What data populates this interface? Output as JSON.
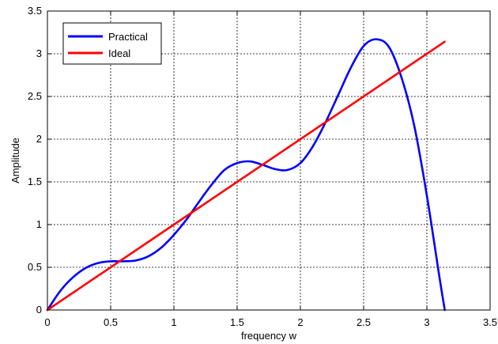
{
  "chart_data": {
    "type": "line",
    "xlabel": "frequency w",
    "ylabel": "Amplitude",
    "xlim": [
      0,
      3.5
    ],
    "ylim": [
      0,
      3.5
    ],
    "xticks": [
      0,
      0.5,
      1,
      1.5,
      2,
      2.5,
      3,
      3.5
    ],
    "yticks": [
      0,
      0.5,
      1,
      1.5,
      2,
      2.5,
      3,
      3.5
    ],
    "xtick_labels": [
      "0",
      "0.5",
      "1",
      "1.5",
      "2",
      "2.5",
      "3",
      "3.5"
    ],
    "ytick_labels": [
      "0",
      "0.5",
      "1",
      "1.5",
      "2",
      "2.5",
      "3",
      "3.5"
    ],
    "grid": true,
    "legend_position": "top-left",
    "series": [
      {
        "name": "Practical",
        "color": "#0000ff",
        "x": [
          0,
          0.1,
          0.2,
          0.3,
          0.4,
          0.5,
          0.6,
          0.7,
          0.8,
          0.9,
          1.0,
          1.1,
          1.2,
          1.3,
          1.4,
          1.5,
          1.6,
          1.7,
          1.8,
          1.9,
          2.0,
          2.1,
          2.2,
          2.3,
          2.4,
          2.5,
          2.6,
          2.7,
          2.8,
          2.9,
          3.0,
          3.1,
          3.1416
        ],
        "y": [
          0,
          0.22,
          0.38,
          0.49,
          0.55,
          0.57,
          0.57,
          0.58,
          0.63,
          0.73,
          0.88,
          1.06,
          1.27,
          1.47,
          1.64,
          1.72,
          1.74,
          1.7,
          1.65,
          1.64,
          1.72,
          1.92,
          2.2,
          2.52,
          2.84,
          3.09,
          3.17,
          3.08,
          2.72,
          2.16,
          1.34,
          0.38,
          0
        ]
      },
      {
        "name": "Ideal",
        "color": "#ff0000",
        "x": [
          0,
          3.1416
        ],
        "y": [
          0,
          3.1416
        ]
      }
    ]
  }
}
